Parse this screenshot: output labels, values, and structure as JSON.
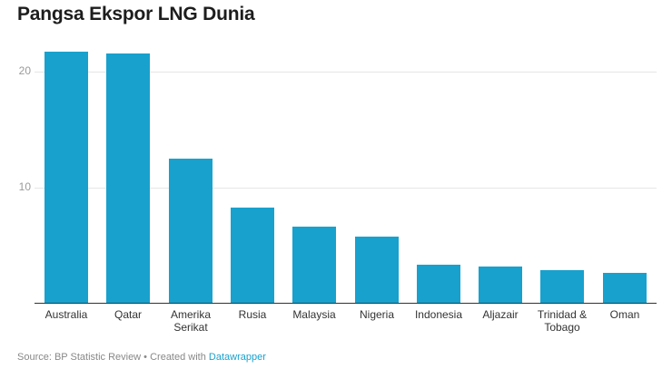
{
  "title": "Pangsa Ekspor LNG Dunia",
  "footer": {
    "source_text": "Source: BP Statistic Review • Created with ",
    "link_text": "Datawrapper"
  },
  "colors": {
    "bar": "#18a1cd",
    "link": "#18a1cd"
  },
  "chart_data": {
    "type": "bar",
    "title": "Pangsa Ekspor LNG Dunia",
    "xlabel": "",
    "ylabel": "",
    "categories": [
      "Australia",
      "Qatar",
      "Amerika Serikat",
      "Rusia",
      "Malaysia",
      "Nigeria",
      "Indonesia",
      "Aljazair",
      "Trinidad & Tobago",
      "Oman"
    ],
    "values": [
      21.7,
      21.6,
      12.5,
      8.2,
      6.6,
      5.7,
      3.3,
      3.1,
      2.8,
      2.6
    ],
    "yticks": [
      10,
      20
    ],
    "ylim": [
      0,
      22
    ],
    "grid": true,
    "legend": null
  },
  "labels": [
    [
      "Australia"
    ],
    [
      "Qatar"
    ],
    [
      "Amerika",
      "Serikat"
    ],
    [
      "Rusia"
    ],
    [
      "Malaysia"
    ],
    [
      "Nigeria"
    ],
    [
      "Indonesia"
    ],
    [
      "Aljazair"
    ],
    [
      "Trinidad &",
      "Tobago"
    ],
    [
      "Oman"
    ]
  ]
}
